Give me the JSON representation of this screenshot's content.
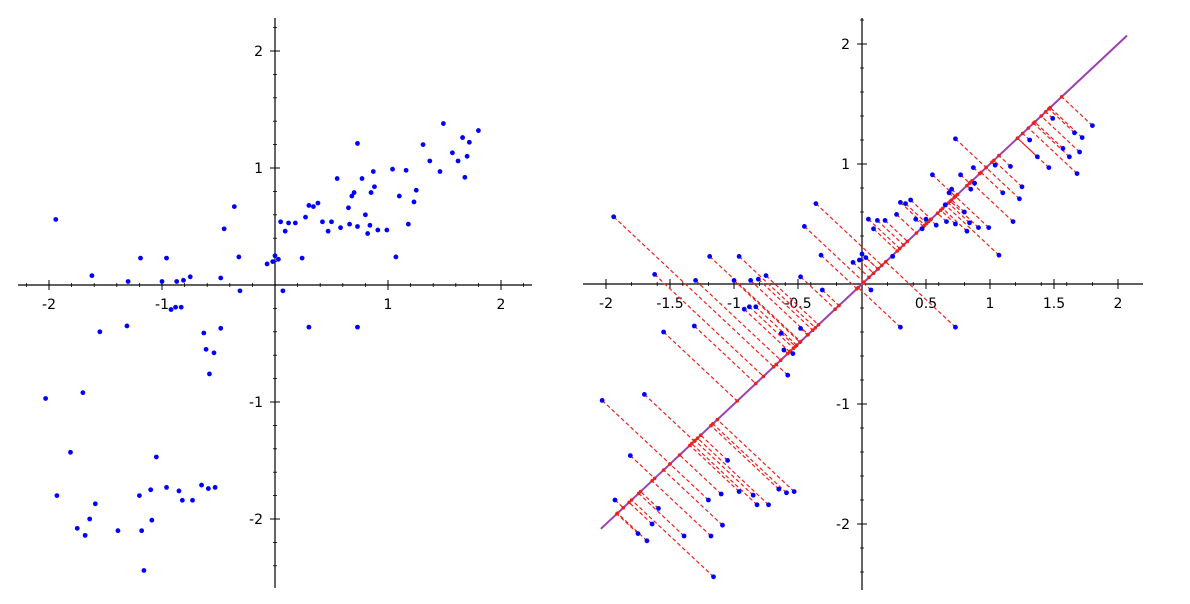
{
  "colors": {
    "points": "#0000ff",
    "axes": "#000000",
    "regression_line": "#9b3fb4",
    "projection": "#e8231e"
  },
  "chart_data": [
    {
      "type": "scatter",
      "title": "",
      "xlabel": "",
      "ylabel": "",
      "grid": false,
      "xlim": [
        -2.25,
        2.25
      ],
      "ylim": [
        -2.6,
        2.3
      ],
      "x_ticks": [
        {
          "value": -2,
          "label": "-2"
        },
        {
          "value": -1,
          "label": "-1"
        },
        {
          "value": 1,
          "label": "1"
        },
        {
          "value": 2,
          "label": "2"
        }
      ],
      "y_ticks": [
        {
          "value": -2,
          "label": "-2"
        },
        {
          "value": -1,
          "label": "-1"
        },
        {
          "value": 1,
          "label": "1"
        },
        {
          "value": 2,
          "label": "2"
        }
      ],
      "series": [
        {
          "points": [
            [
              -1.94,
              0.56
            ],
            [
              -1.62,
              0.08
            ],
            [
              -1.3,
              0.03
            ],
            [
              -1.19,
              0.23
            ],
            [
              -1.0,
              0.03
            ],
            [
              -0.96,
              0.23
            ],
            [
              -0.87,
              0.03
            ],
            [
              -0.81,
              0.04
            ],
            [
              -0.75,
              0.07
            ],
            [
              -0.48,
              0.06
            ],
            [
              -0.45,
              0.48
            ],
            [
              -0.36,
              0.67
            ],
            [
              -0.32,
              0.24
            ],
            [
              -0.07,
              0.18
            ],
            [
              -0.02,
              0.2
            ],
            [
              0.0,
              0.25
            ],
            [
              0.03,
              0.22
            ],
            [
              0.05,
              0.54
            ],
            [
              0.09,
              0.46
            ],
            [
              0.12,
              0.53
            ],
            [
              0.18,
              0.53
            ],
            [
              0.24,
              0.23
            ],
            [
              0.27,
              0.58
            ],
            [
              0.3,
              0.68
            ],
            [
              0.34,
              0.67
            ],
            [
              0.38,
              0.7
            ],
            [
              0.42,
              0.54
            ],
            [
              0.47,
              0.46
            ],
            [
              0.5,
              0.54
            ],
            [
              0.55,
              0.91
            ],
            [
              0.58,
              0.49
            ],
            [
              0.65,
              0.66
            ],
            [
              0.66,
              0.52
            ],
            [
              0.68,
              0.76
            ],
            [
              0.7,
              0.79
            ],
            [
              0.73,
              0.5
            ],
            [
              0.73,
              1.21
            ],
            [
              0.77,
              0.91
            ],
            [
              0.8,
              0.6
            ],
            [
              0.82,
              0.44
            ],
            [
              0.84,
              0.51
            ],
            [
              0.85,
              0.79
            ],
            [
              0.87,
              0.97
            ],
            [
              0.88,
              0.84
            ],
            [
              0.91,
              0.47
            ],
            [
              0.99,
              0.47
            ],
            [
              1.04,
              0.99
            ],
            [
              1.07,
              0.24
            ],
            [
              1.1,
              0.76
            ],
            [
              1.16,
              0.98
            ],
            [
              1.18,
              0.52
            ],
            [
              1.23,
              0.71
            ],
            [
              1.25,
              0.81
            ],
            [
              1.31,
              1.2
            ],
            [
              1.37,
              1.06
            ],
            [
              1.46,
              0.97
            ],
            [
              1.49,
              1.38
            ],
            [
              1.57,
              1.13
            ],
            [
              1.62,
              1.06
            ],
            [
              1.66,
              1.26
            ],
            [
              1.68,
              0.92
            ],
            [
              1.7,
              1.1
            ],
            [
              1.72,
              1.22
            ],
            [
              1.8,
              1.32
            ],
            [
              -1.55,
              -0.4
            ],
            [
              -1.31,
              -0.35
            ],
            [
              -0.92,
              -0.21
            ],
            [
              -0.88,
              -0.19
            ],
            [
              -0.83,
              -0.19
            ],
            [
              -0.63,
              -0.41
            ],
            [
              -0.61,
              -0.55
            ],
            [
              -0.58,
              -0.76
            ],
            [
              -0.54,
              -0.58
            ],
            [
              -0.48,
              -0.37
            ],
            [
              -0.31,
              -0.05
            ],
            [
              0.07,
              -0.05
            ],
            [
              0.3,
              -0.36
            ],
            [
              0.73,
              -0.36
            ],
            [
              -2.03,
              -0.97
            ],
            [
              -1.93,
              -1.8
            ],
            [
              -1.81,
              -1.43
            ],
            [
              -1.75,
              -2.08
            ],
            [
              -1.7,
              -0.92
            ],
            [
              -1.68,
              -2.14
            ],
            [
              -1.64,
              -2.0
            ],
            [
              -1.59,
              -1.87
            ],
            [
              -1.39,
              -2.1
            ],
            [
              -1.2,
              -1.8
            ],
            [
              -1.18,
              -2.1
            ],
            [
              -1.16,
              -2.44
            ],
            [
              -1.1,
              -1.75
            ],
            [
              -1.09,
              -2.01
            ],
            [
              -1.05,
              -1.47
            ],
            [
              -0.96,
              -1.73
            ],
            [
              -0.85,
              -1.76
            ],
            [
              -0.82,
              -1.84
            ],
            [
              -0.73,
              -1.84
            ],
            [
              -0.65,
              -1.71
            ],
            [
              -0.59,
              -1.74
            ],
            [
              -0.53,
              -1.73
            ]
          ]
        }
      ]
    },
    {
      "type": "scatter",
      "title": "",
      "xlabel": "",
      "ylabel": "",
      "grid": false,
      "xlim": [
        -2.2,
        2.2
      ],
      "ylim": [
        -2.6,
        2.3
      ],
      "x_ticks": [
        {
          "value": -2,
          "label": "-2"
        },
        {
          "value": -1.5,
          "label": "-1.5"
        },
        {
          "value": -1,
          "label": "-1"
        },
        {
          "value": -0.5,
          "label": "-0.5"
        },
        {
          "value": 0.5,
          "label": "0.5"
        },
        {
          "value": 1,
          "label": "1"
        },
        {
          "value": 1.5,
          "label": "1.5"
        },
        {
          "value": 2,
          "label": "2"
        }
      ],
      "y_ticks": [
        {
          "value": -2,
          "label": "-2"
        },
        {
          "value": -1,
          "label": "-1"
        },
        {
          "value": 1,
          "label": "1"
        },
        {
          "value": 2,
          "label": "2"
        }
      ],
      "regression_line": {
        "slope": 1.0,
        "intercept": 0.0,
        "x_range": [
          -2.04,
          2.07
        ]
      },
      "projection_lines": true,
      "series": [
        {
          "points": [
            [
              -1.94,
              0.56
            ],
            [
              -1.62,
              0.08
            ],
            [
              -1.3,
              0.03
            ],
            [
              -1.19,
              0.23
            ],
            [
              -1.0,
              0.03
            ],
            [
              -0.96,
              0.23
            ],
            [
              -0.87,
              0.03
            ],
            [
              -0.81,
              0.04
            ],
            [
              -0.75,
              0.07
            ],
            [
              -0.48,
              0.06
            ],
            [
              -0.45,
              0.48
            ],
            [
              -0.36,
              0.67
            ],
            [
              -0.32,
              0.24
            ],
            [
              -0.07,
              0.18
            ],
            [
              -0.02,
              0.2
            ],
            [
              0.0,
              0.25
            ],
            [
              0.03,
              0.22
            ],
            [
              0.05,
              0.54
            ],
            [
              0.09,
              0.46
            ],
            [
              0.12,
              0.53
            ],
            [
              0.18,
              0.53
            ],
            [
              0.24,
              0.23
            ],
            [
              0.27,
              0.58
            ],
            [
              0.3,
              0.68
            ],
            [
              0.34,
              0.67
            ],
            [
              0.38,
              0.7
            ],
            [
              0.42,
              0.54
            ],
            [
              0.47,
              0.46
            ],
            [
              0.5,
              0.54
            ],
            [
              0.55,
              0.91
            ],
            [
              0.58,
              0.49
            ],
            [
              0.65,
              0.66
            ],
            [
              0.66,
              0.52
            ],
            [
              0.68,
              0.76
            ],
            [
              0.7,
              0.79
            ],
            [
              0.73,
              0.5
            ],
            [
              0.73,
              1.21
            ],
            [
              0.77,
              0.91
            ],
            [
              0.8,
              0.6
            ],
            [
              0.82,
              0.44
            ],
            [
              0.84,
              0.51
            ],
            [
              0.85,
              0.79
            ],
            [
              0.87,
              0.97
            ],
            [
              0.88,
              0.84
            ],
            [
              0.91,
              0.47
            ],
            [
              0.99,
              0.47
            ],
            [
              1.04,
              0.99
            ],
            [
              1.07,
              0.24
            ],
            [
              1.1,
              0.76
            ],
            [
              1.16,
              0.98
            ],
            [
              1.18,
              0.52
            ],
            [
              1.23,
              0.71
            ],
            [
              1.25,
              0.81
            ],
            [
              1.31,
              1.2
            ],
            [
              1.37,
              1.06
            ],
            [
              1.46,
              0.97
            ],
            [
              1.49,
              1.38
            ],
            [
              1.57,
              1.13
            ],
            [
              1.62,
              1.06
            ],
            [
              1.66,
              1.26
            ],
            [
              1.68,
              0.92
            ],
            [
              1.7,
              1.1
            ],
            [
              1.72,
              1.22
            ],
            [
              1.8,
              1.32
            ],
            [
              -1.55,
              -0.4
            ],
            [
              -1.31,
              -0.35
            ],
            [
              -0.92,
              -0.21
            ],
            [
              -0.88,
              -0.19
            ],
            [
              -0.83,
              -0.19
            ],
            [
              -0.63,
              -0.41
            ],
            [
              -0.61,
              -0.55
            ],
            [
              -0.58,
              -0.76
            ],
            [
              -0.54,
              -0.58
            ],
            [
              -0.48,
              -0.37
            ],
            [
              -0.31,
              -0.05
            ],
            [
              0.07,
              -0.05
            ],
            [
              0.3,
              -0.36
            ],
            [
              0.73,
              -0.36
            ],
            [
              -2.03,
              -0.97
            ],
            [
              -1.93,
              -1.8
            ],
            [
              -1.81,
              -1.43
            ],
            [
              -1.75,
              -2.08
            ],
            [
              -1.7,
              -0.92
            ],
            [
              -1.68,
              -2.14
            ],
            [
              -1.64,
              -2.0
            ],
            [
              -1.59,
              -1.87
            ],
            [
              -1.39,
              -2.1
            ],
            [
              -1.2,
              -1.8
            ],
            [
              -1.18,
              -2.1
            ],
            [
              -1.16,
              -2.44
            ],
            [
              -1.1,
              -1.75
            ],
            [
              -1.09,
              -2.01
            ],
            [
              -1.05,
              -1.47
            ],
            [
              -0.96,
              -1.73
            ],
            [
              -0.85,
              -1.76
            ],
            [
              -0.82,
              -1.84
            ],
            [
              -0.73,
              -1.84
            ],
            [
              -0.65,
              -1.71
            ],
            [
              -0.59,
              -1.74
            ],
            [
              -0.53,
              -1.73
            ]
          ]
        }
      ]
    }
  ]
}
